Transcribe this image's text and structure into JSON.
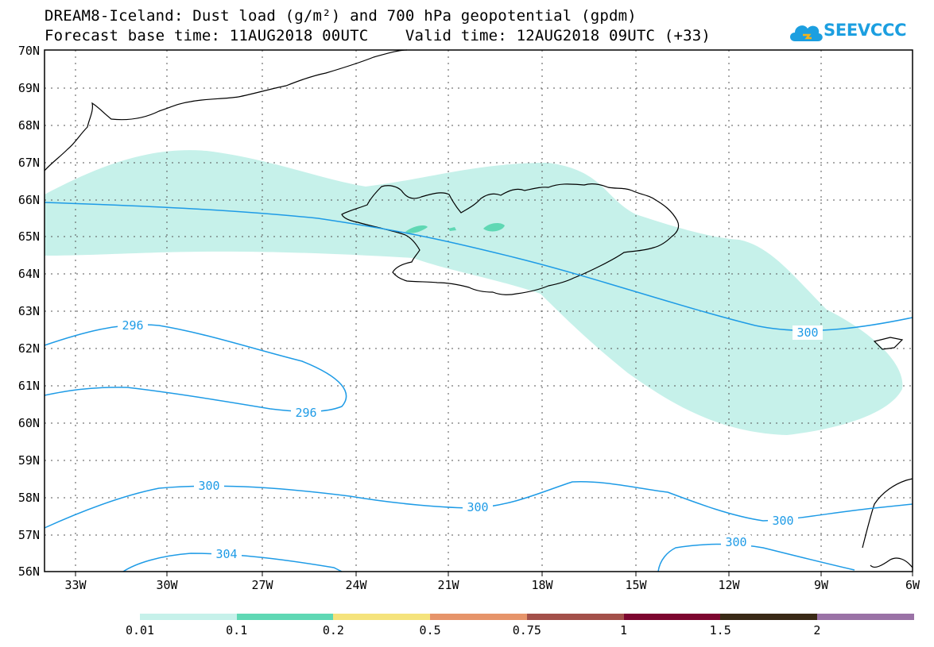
{
  "header": {
    "title_line1": "DREAM8-Iceland: Dust load (g/m²) and 700 hPa geopotential (gpdm)",
    "title_line2": "Forecast base time: 11AUG2018 00UTC    Valid time: 12AUG2018 09UTC (+33)",
    "logo_text": "SEEVCCC"
  },
  "map": {
    "latitudes": [
      "70N",
      "69N",
      "68N",
      "67N",
      "66N",
      "65N",
      "64N",
      "63N",
      "62N",
      "61N",
      "60N",
      "59N",
      "58N",
      "57N",
      "56N"
    ],
    "longitudes": [
      "33W",
      "30W",
      "27W",
      "24W",
      "21W",
      "18W",
      "15W",
      "12W",
      "9W",
      "6W"
    ],
    "contour_labels": [
      "296",
      "296",
      "300",
      "300",
      "300",
      "300",
      "300",
      "304"
    ],
    "contour_color": "#1e9be6",
    "dust_color": "#c6f1ea",
    "dust_high_color": "#5fd8b4",
    "coast_color": "#000000"
  },
  "colorbar": {
    "labels": [
      "0.01",
      "0.1",
      "0.2",
      "0.5",
      "0.75",
      "1",
      "1.5",
      "2"
    ],
    "colors": [
      "#c6f1ea",
      "#5fd8b4",
      "#f5e37c",
      "#e6946a",
      "#a3504a",
      "#7d0730",
      "#3a2a16",
      "#9a72a6"
    ]
  }
}
